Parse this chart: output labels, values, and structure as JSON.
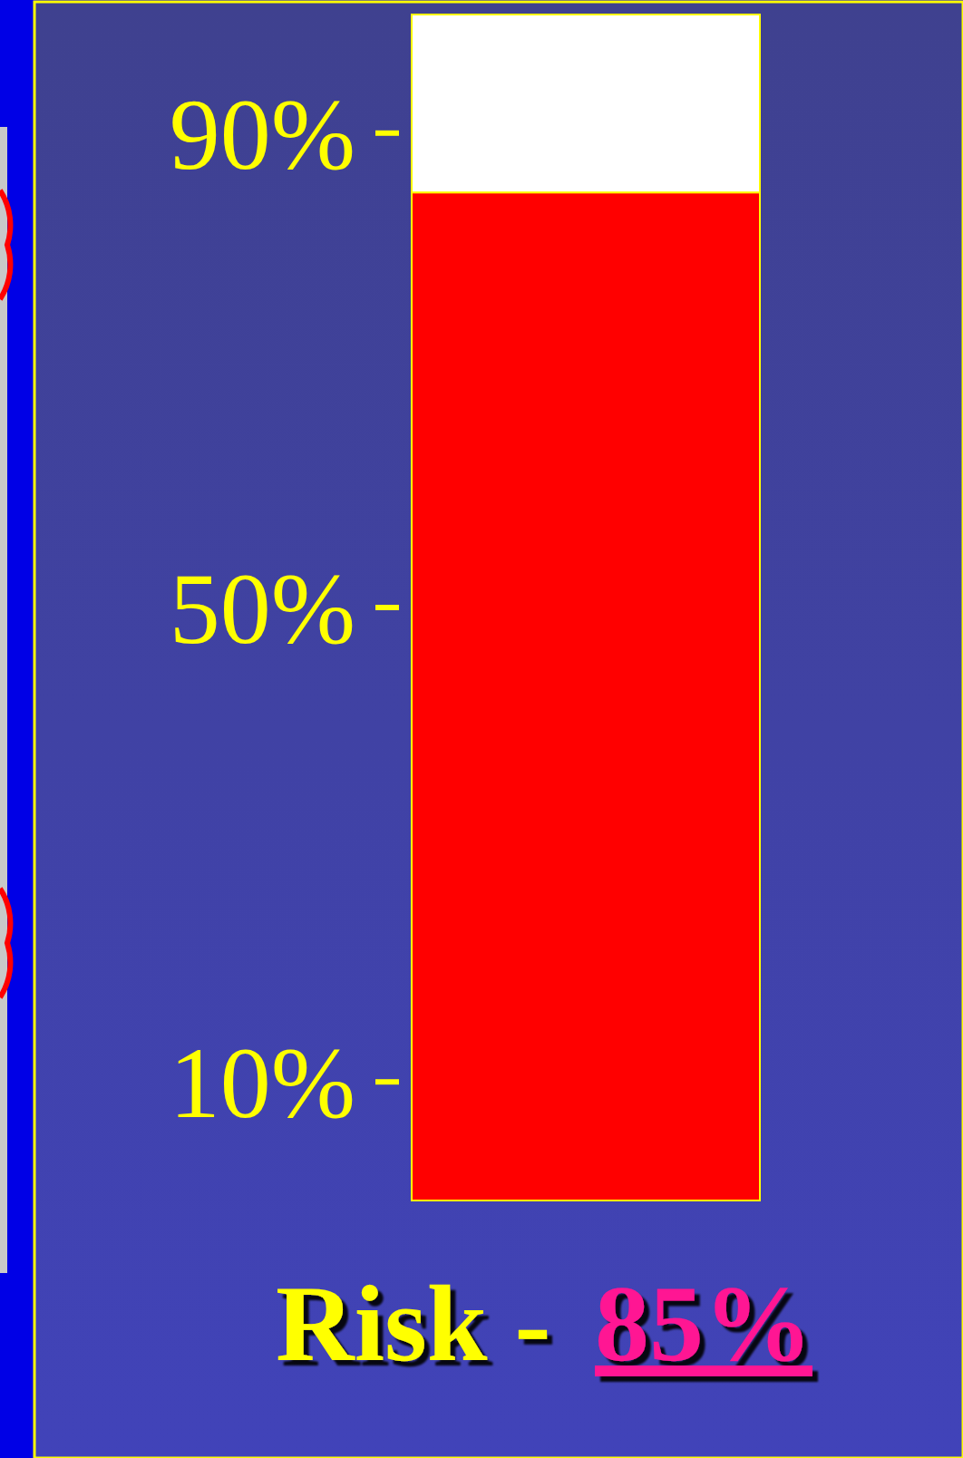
{
  "chart_data": {
    "type": "bar",
    "title": "Risk -",
    "categories": [
      null
    ],
    "stacked": true,
    "ylim": [
      0,
      100
    ],
    "yticks": [
      {
        "value": 10,
        "label": "10%"
      },
      {
        "value": 50,
        "label": "50%"
      },
      {
        "value": 90,
        "label": "90%"
      }
    ],
    "series": [
      {
        "color": "#ff0000",
        "values": [
          85
        ],
        "value_labels": [
          "85%"
        ]
      },
      {
        "color": "#ffffff",
        "values": [
          15
        ]
      }
    ]
  }
}
